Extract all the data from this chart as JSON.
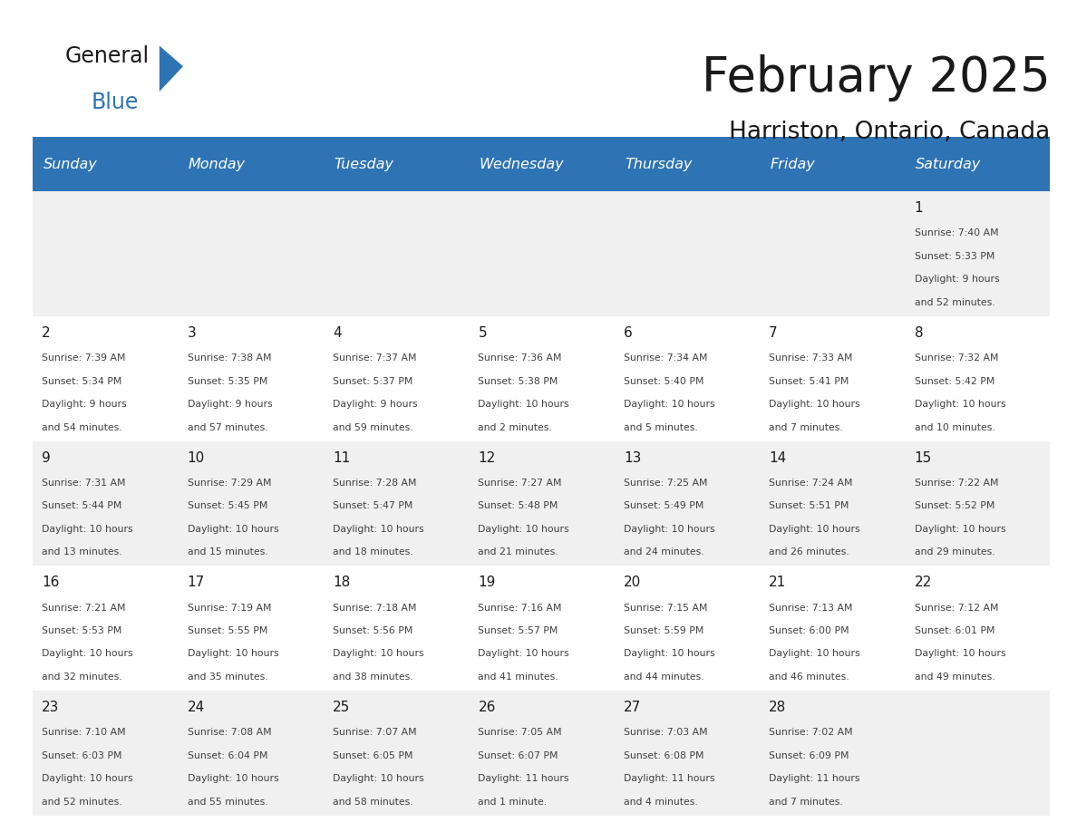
{
  "title": "February 2025",
  "subtitle": "Harriston, Ontario, Canada",
  "header_bg": "#2E74B5",
  "header_text_color": "#FFFFFF",
  "cell_bg_white": "#FFFFFF",
  "cell_bg_gray": "#F0F0F0",
  "border_color": "#2E74B5",
  "day_headers": [
    "Sunday",
    "Monday",
    "Tuesday",
    "Wednesday",
    "Thursday",
    "Friday",
    "Saturday"
  ],
  "title_color": "#1A1A1A",
  "subtitle_color": "#1A1A1A",
  "day_number_color": "#1A1A1A",
  "cell_text_color": "#404040",
  "logo_text_color": "#1A1A1A",
  "logo_blue_color": "#2E74B5",
  "calendar_data": [
    [
      null,
      null,
      null,
      null,
      null,
      null,
      {
        "day": "1",
        "sunrise": "7:40 AM",
        "sunset": "5:33 PM",
        "daylight": "9 hours\nand 52 minutes."
      }
    ],
    [
      {
        "day": "2",
        "sunrise": "7:39 AM",
        "sunset": "5:34 PM",
        "daylight": "9 hours\nand 54 minutes."
      },
      {
        "day": "3",
        "sunrise": "7:38 AM",
        "sunset": "5:35 PM",
        "daylight": "9 hours\nand 57 minutes."
      },
      {
        "day": "4",
        "sunrise": "7:37 AM",
        "sunset": "5:37 PM",
        "daylight": "9 hours\nand 59 minutes."
      },
      {
        "day": "5",
        "sunrise": "7:36 AM",
        "sunset": "5:38 PM",
        "daylight": "10 hours\nand 2 minutes."
      },
      {
        "day": "6",
        "sunrise": "7:34 AM",
        "sunset": "5:40 PM",
        "daylight": "10 hours\nand 5 minutes."
      },
      {
        "day": "7",
        "sunrise": "7:33 AM",
        "sunset": "5:41 PM",
        "daylight": "10 hours\nand 7 minutes."
      },
      {
        "day": "8",
        "sunrise": "7:32 AM",
        "sunset": "5:42 PM",
        "daylight": "10 hours\nand 10 minutes."
      }
    ],
    [
      {
        "day": "9",
        "sunrise": "7:31 AM",
        "sunset": "5:44 PM",
        "daylight": "10 hours\nand 13 minutes."
      },
      {
        "day": "10",
        "sunrise": "7:29 AM",
        "sunset": "5:45 PM",
        "daylight": "10 hours\nand 15 minutes."
      },
      {
        "day": "11",
        "sunrise": "7:28 AM",
        "sunset": "5:47 PM",
        "daylight": "10 hours\nand 18 minutes."
      },
      {
        "day": "12",
        "sunrise": "7:27 AM",
        "sunset": "5:48 PM",
        "daylight": "10 hours\nand 21 minutes."
      },
      {
        "day": "13",
        "sunrise": "7:25 AM",
        "sunset": "5:49 PM",
        "daylight": "10 hours\nand 24 minutes."
      },
      {
        "day": "14",
        "sunrise": "7:24 AM",
        "sunset": "5:51 PM",
        "daylight": "10 hours\nand 26 minutes."
      },
      {
        "day": "15",
        "sunrise": "7:22 AM",
        "sunset": "5:52 PM",
        "daylight": "10 hours\nand 29 minutes."
      }
    ],
    [
      {
        "day": "16",
        "sunrise": "7:21 AM",
        "sunset": "5:53 PM",
        "daylight": "10 hours\nand 32 minutes."
      },
      {
        "day": "17",
        "sunrise": "7:19 AM",
        "sunset": "5:55 PM",
        "daylight": "10 hours\nand 35 minutes."
      },
      {
        "day": "18",
        "sunrise": "7:18 AM",
        "sunset": "5:56 PM",
        "daylight": "10 hours\nand 38 minutes."
      },
      {
        "day": "19",
        "sunrise": "7:16 AM",
        "sunset": "5:57 PM",
        "daylight": "10 hours\nand 41 minutes."
      },
      {
        "day": "20",
        "sunrise": "7:15 AM",
        "sunset": "5:59 PM",
        "daylight": "10 hours\nand 44 minutes."
      },
      {
        "day": "21",
        "sunrise": "7:13 AM",
        "sunset": "6:00 PM",
        "daylight": "10 hours\nand 46 minutes."
      },
      {
        "day": "22",
        "sunrise": "7:12 AM",
        "sunset": "6:01 PM",
        "daylight": "10 hours\nand 49 minutes."
      }
    ],
    [
      {
        "day": "23",
        "sunrise": "7:10 AM",
        "sunset": "6:03 PM",
        "daylight": "10 hours\nand 52 minutes."
      },
      {
        "day": "24",
        "sunrise": "7:08 AM",
        "sunset": "6:04 PM",
        "daylight": "10 hours\nand 55 minutes."
      },
      {
        "day": "25",
        "sunrise": "7:07 AM",
        "sunset": "6:05 PM",
        "daylight": "10 hours\nand 58 minutes."
      },
      {
        "day": "26",
        "sunrise": "7:05 AM",
        "sunset": "6:07 PM",
        "daylight": "11 hours\nand 1 minute."
      },
      {
        "day": "27",
        "sunrise": "7:03 AM",
        "sunset": "6:08 PM",
        "daylight": "11 hours\nand 4 minutes."
      },
      {
        "day": "28",
        "sunrise": "7:02 AM",
        "sunset": "6:09 PM",
        "daylight": "11 hours\nand 7 minutes."
      },
      null
    ]
  ]
}
